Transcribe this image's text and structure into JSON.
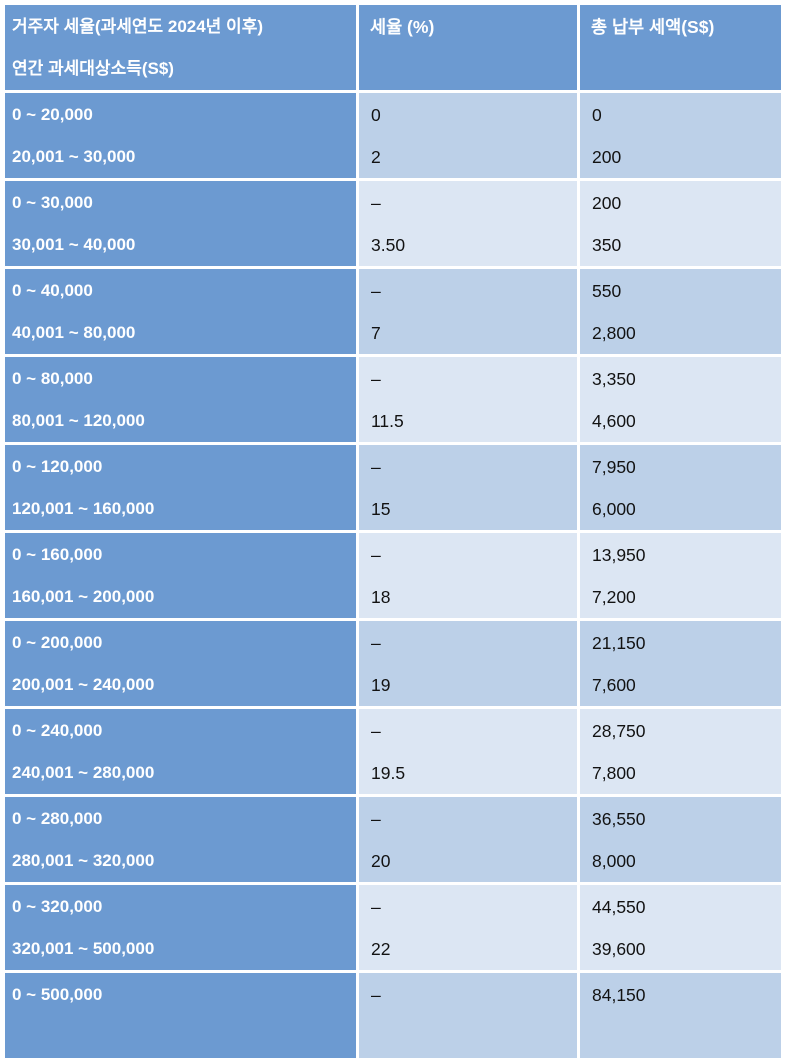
{
  "table": {
    "header": {
      "col1_line1": "거주자 세율(과세연도 2024년 이후)",
      "col1_line2": "연간 과세대상소득(S$)",
      "col2": "세율 (%)",
      "col3": "총 납부 세액(S$)"
    },
    "rows": [
      {
        "income": [
          "0 ~ 20,000",
          "20,001 ~ 30,000"
        ],
        "rate": [
          "0",
          "2"
        ],
        "tax": [
          "0",
          "200"
        ]
      },
      {
        "income": [
          "0 ~ 30,000",
          "30,001 ~ 40,000"
        ],
        "rate": [
          "–",
          "3.50"
        ],
        "tax": [
          "200",
          "350"
        ]
      },
      {
        "income": [
          "0 ~ 40,000",
          "40,001 ~ 80,000"
        ],
        "rate": [
          "–",
          "7"
        ],
        "tax": [
          "550",
          "2,800"
        ]
      },
      {
        "income": [
          "0 ~ 80,000",
          "80,001 ~ 120,000"
        ],
        "rate": [
          "–",
          "11.5"
        ],
        "tax": [
          "3,350",
          "4,600"
        ]
      },
      {
        "income": [
          "0 ~ 120,000",
          "120,001 ~ 160,000"
        ],
        "rate": [
          "–",
          "15"
        ],
        "tax": [
          "7,950",
          "6,000"
        ]
      },
      {
        "income": [
          "0 ~ 160,000",
          "160,001 ~ 200,000"
        ],
        "rate": [
          "–",
          "18"
        ],
        "tax": [
          "13,950",
          "7,200"
        ]
      },
      {
        "income": [
          "0 ~ 200,000",
          "200,001 ~ 240,000"
        ],
        "rate": [
          "–",
          "19"
        ],
        "tax": [
          "21,150",
          "7,600"
        ]
      },
      {
        "income": [
          "0 ~ 240,000",
          "240,001 ~ 280,000"
        ],
        "rate": [
          "–",
          "19.5"
        ],
        "tax": [
          "28,750",
          "7,800"
        ]
      },
      {
        "income": [
          "0 ~ 280,000",
          "280,001 ~ 320,000"
        ],
        "rate": [
          "–",
          "20"
        ],
        "tax": [
          "36,550",
          "8,000"
        ]
      },
      {
        "income": [
          "0 ~ 320,000",
          "320,001 ~ 500,000"
        ],
        "rate": [
          "–",
          "22"
        ],
        "tax": [
          "44,550",
          "39,600"
        ]
      },
      {
        "income": [
          "0 ~ 500,000",
          ""
        ],
        "rate": [
          "–",
          ""
        ],
        "tax": [
          "84,150",
          ""
        ]
      }
    ],
    "colors": {
      "header_blue": "#6c9ad1",
      "row_shade_dark": "#bcd0e8",
      "row_shade_light": "#dce6f3",
      "header_text": "#ffffff",
      "value_text": "#121212",
      "separator": "#ffffff"
    }
  },
  "chart_data": {
    "type": "table",
    "columns": [
      "거주자 세율(과세연도 2024년 이후) 연간 과세대상소득(S$)",
      "세율 (%)",
      "총 납부 세액(S$)"
    ],
    "rows": [
      [
        "0 ~ 20,000",
        "0",
        "0"
      ],
      [
        "20,001 ~ 30,000",
        "2",
        "200"
      ],
      [
        "0 ~ 30,000",
        "–",
        "200"
      ],
      [
        "30,001 ~ 40,000",
        "3.50",
        "350"
      ],
      [
        "0 ~ 40,000",
        "–",
        "550"
      ],
      [
        "40,001 ~ 80,000",
        "7",
        "2,800"
      ],
      [
        "0 ~ 80,000",
        "–",
        "3,350"
      ],
      [
        "80,001 ~ 120,000",
        "11.5",
        "4,600"
      ],
      [
        "0 ~ 120,000",
        "–",
        "7,950"
      ],
      [
        "120,001 ~ 160,000",
        "15",
        "6,000"
      ],
      [
        "0 ~ 160,000",
        "–",
        "13,950"
      ],
      [
        "160,001 ~ 200,000",
        "18",
        "7,200"
      ],
      [
        "0 ~ 200,000",
        "–",
        "21,150"
      ],
      [
        "200,001 ~ 240,000",
        "19",
        "7,600"
      ],
      [
        "0 ~ 240,000",
        "–",
        "28,750"
      ],
      [
        "240,001 ~ 280,000",
        "19.5",
        "7,800"
      ],
      [
        "0 ~ 280,000",
        "–",
        "36,550"
      ],
      [
        "280,001 ~ 320,000",
        "20",
        "8,000"
      ],
      [
        "0 ~ 320,000",
        "–",
        "44,550"
      ],
      [
        "320,001 ~ 500,000",
        "22",
        "39,600"
      ],
      [
        "0 ~ 500,000",
        "–",
        "84,150"
      ]
    ]
  }
}
